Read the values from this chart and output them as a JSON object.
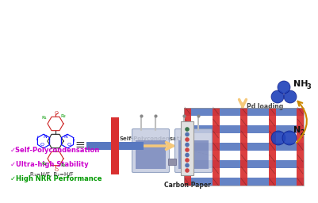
{
  "bg_color": "#ffffff",
  "arrow_color": "#f5c87a",
  "arrow_text": "Self-Polycondensation",
  "arrow_text2": "Pd loading",
  "carbon_paper_text": "Carbon Paper",
  "bullet1": "✓Self-Polycondensation",
  "bullet2": "✓Ultra-high Stability",
  "bullet3": "✓High NRR Performance",
  "bullet1_color": "#cc00cc",
  "bullet2_color": "#cc00cc",
  "bullet3_color": "#009900",
  "red_color": "#d93030",
  "blue_color": "#5878c0",
  "n2_color": "#2244bb",
  "molecule_text1": "N",
  "molecule_sub1": "2",
  "molecule_text2": "NH",
  "molecule_sub2": "3",
  "r_label": "R₁=H/F, R₂=H/F",
  "equiv_text": "≡",
  "pd_loading_text": "Pd loading"
}
